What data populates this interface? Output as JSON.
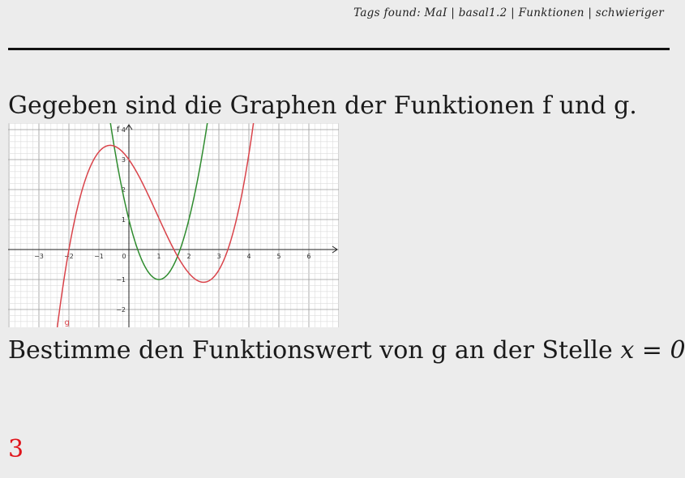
{
  "header": {
    "tags_prefix": "Tags found:",
    "tags": [
      "MaI",
      "basal1.2",
      "Funktionen",
      "schwieriger"
    ]
  },
  "problem": {
    "intro": "Gegeben sind die Graphen der Funktionen f und g.",
    "question_text": "Bestimme den Funktionswert von g an der Stelle ",
    "question_math": "x = 0",
    "question_end": "."
  },
  "answer": {
    "value": "3"
  },
  "graph": {
    "x_ticks": [
      "−3",
      "−2",
      "−1",
      "0",
      "1",
      "2",
      "3",
      "4",
      "5",
      "6"
    ],
    "y_ticks": [
      "−2",
      "−1",
      "1",
      "2",
      "3",
      "4"
    ],
    "x_tick_values": [
      -3,
      -2,
      -1,
      0,
      1,
      2,
      3,
      4,
      5,
      6
    ],
    "y_tick_values": [
      -2,
      -1,
      1,
      2,
      3,
      4
    ],
    "x_range": [
      -4.1,
      7.0
    ],
    "y_range": [
      -2.6,
      4.2
    ],
    "functions": [
      {
        "label": "f",
        "color": "#2e8b2e",
        "rule": "2(x-1)^2 - 1"
      },
      {
        "label": "g",
        "color": "#d9434a",
        "rule": "(x+2)(x-1.5)(x-3.3)/3.3"
      }
    ]
  }
}
